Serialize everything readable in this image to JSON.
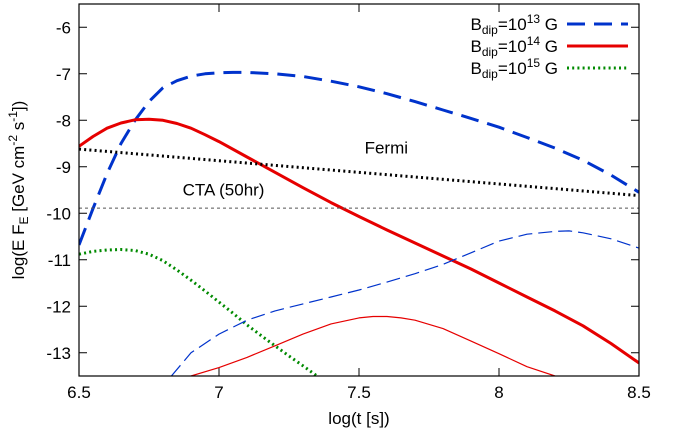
{
  "chart_data": {
    "type": "line",
    "xlabel": "log(t [s])",
    "ylabel": {
      "pre": "log(E F",
      "sub": "E",
      "mid1": " [GeV cm",
      "sup1": "-2",
      "mid2": " s",
      "sup2": "-1",
      "post": "])"
    },
    "xlim": [
      6.5,
      8.5
    ],
    "ylim": [
      -13.5,
      -5.5
    ],
    "xticks": [
      6.5,
      7,
      7.5,
      8,
      8.5
    ],
    "xtick_labels": [
      "6.5",
      "7",
      "7.5",
      "8",
      "8.5"
    ],
    "yticks": [
      -13,
      -12,
      -11,
      -10,
      -9,
      -8,
      -7,
      -6
    ],
    "ytick_labels": [
      "-13",
      "-12",
      "-11",
      "-10",
      "-9",
      "-8",
      "-7",
      "-6"
    ],
    "legend_position": "top-right",
    "colors": {
      "blue": "#0033cc",
      "red": "#e60000",
      "green": "#008a00",
      "black": "#000000",
      "gray": "#555555"
    },
    "series": [
      {
        "legend": {
          "pre": "B",
          "sub": "dip",
          "mid": "=10",
          "sup": "13",
          "post": " G"
        },
        "style": "dashed",
        "color": "#0033cc",
        "width": 3,
        "x": [
          6.5,
          6.55,
          6.6,
          6.65,
          6.7,
          6.75,
          6.8,
          6.85,
          6.9,
          6.95,
          7.0,
          7.05,
          7.1,
          7.2,
          7.3,
          7.4,
          7.5,
          7.6,
          7.7,
          7.8,
          7.9,
          8.0,
          8.1,
          8.2,
          8.3,
          8.4,
          8.5
        ],
        "y": [
          -10.68,
          -9.9,
          -9.15,
          -8.5,
          -8.0,
          -7.6,
          -7.3,
          -7.15,
          -7.05,
          -7.0,
          -6.98,
          -6.97,
          -6.97,
          -7.0,
          -7.06,
          -7.16,
          -7.28,
          -7.43,
          -7.6,
          -7.78,
          -7.96,
          -8.15,
          -8.37,
          -8.6,
          -8.86,
          -9.18,
          -9.55
        ]
      },
      {
        "legend": {
          "pre": "B",
          "sub": "dip",
          "mid": "=10",
          "sup": "14",
          "post": " G"
        },
        "style": "solid",
        "color": "#e60000",
        "width": 3,
        "x": [
          6.5,
          6.55,
          6.6,
          6.65,
          6.7,
          6.75,
          6.8,
          6.85,
          6.9,
          6.95,
          7.0,
          7.1,
          7.2,
          7.3,
          7.4,
          7.5,
          7.6,
          7.7,
          7.8,
          7.9,
          8.0,
          8.1,
          8.2,
          8.3,
          8.4,
          8.5
        ],
        "y": [
          -8.56,
          -8.35,
          -8.17,
          -8.06,
          -7.99,
          -7.98,
          -8.0,
          -8.07,
          -8.17,
          -8.31,
          -8.46,
          -8.79,
          -9.12,
          -9.45,
          -9.77,
          -10.07,
          -10.36,
          -10.64,
          -10.92,
          -11.2,
          -11.5,
          -11.8,
          -12.1,
          -12.42,
          -12.8,
          -13.22
        ]
      },
      {
        "legend": {
          "pre": "B",
          "sub": "dip",
          "mid": "=10",
          "sup": "15",
          "post": " G"
        },
        "style": "dotted",
        "color": "#008a00",
        "width": 3,
        "x": [
          6.5,
          6.55,
          6.6,
          6.65,
          6.7,
          6.75,
          6.8,
          6.85,
          6.9,
          6.95,
          7.0,
          7.05,
          7.1,
          7.15,
          7.2,
          7.25,
          7.3,
          7.35
        ],
        "y": [
          -10.88,
          -10.82,
          -10.79,
          -10.78,
          -10.8,
          -10.88,
          -11.02,
          -11.22,
          -11.44,
          -11.67,
          -11.91,
          -12.15,
          -12.4,
          -12.63,
          -12.85,
          -13.07,
          -13.28,
          -13.5
        ]
      },
      {
        "style": "thin-dashed",
        "color": "#0033cc",
        "width": 1.2,
        "x": [
          6.83,
          6.9,
          7.0,
          7.1,
          7.2,
          7.3,
          7.4,
          7.5,
          7.6,
          7.7,
          7.8,
          7.9,
          8.0,
          8.1,
          8.2,
          8.25,
          8.3,
          8.4,
          8.5
        ],
        "y": [
          -13.5,
          -13.0,
          -12.6,
          -12.3,
          -12.1,
          -11.95,
          -11.8,
          -11.65,
          -11.48,
          -11.3,
          -11.1,
          -10.85,
          -10.6,
          -10.45,
          -10.39,
          -10.38,
          -10.42,
          -10.55,
          -10.75
        ]
      },
      {
        "style": "thin-solid",
        "color": "#e60000",
        "width": 1.2,
        "x": [
          6.9,
          7.0,
          7.1,
          7.2,
          7.3,
          7.4,
          7.5,
          7.55,
          7.6,
          7.65,
          7.7,
          7.8,
          7.9,
          8.0,
          8.1,
          8.2
        ],
        "y": [
          -13.5,
          -13.32,
          -13.1,
          -12.85,
          -12.6,
          -12.38,
          -12.25,
          -12.22,
          -12.22,
          -12.25,
          -12.3,
          -12.48,
          -12.75,
          -13.02,
          -13.3,
          -13.5
        ]
      },
      {
        "style": "dotted",
        "color": "#000000",
        "width": 3,
        "x": [
          6.5,
          8.5
        ],
        "y": [
          -8.62,
          -9.62
        ]
      },
      {
        "style": "thin-dotted",
        "color": "#555555",
        "width": 1,
        "x": [
          6.5,
          8.5
        ],
        "y": [
          -9.89,
          -9.89
        ]
      }
    ],
    "annotations": [
      {
        "text": "Fermi",
        "x": 7.52,
        "y": -8.72
      },
      {
        "text": "CTA (50hr)",
        "x": 6.87,
        "y": -9.62
      }
    ]
  }
}
